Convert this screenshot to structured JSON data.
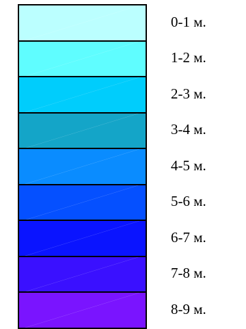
{
  "legend": {
    "items": [
      {
        "label": "0-1 м.",
        "color": "#bbffff"
      },
      {
        "label": "1-2 м.",
        "color": "#5ffdff"
      },
      {
        "label": "2-3 м.",
        "color": "#00cdfc"
      },
      {
        "label": "3-4 м.",
        "color": "#14a5c8"
      },
      {
        "label": "4-5 м.",
        "color": "#0a8cff"
      },
      {
        "label": "5-6 м.",
        "color": "#0550ff"
      },
      {
        "label": "6-7 м.",
        "color": "#0a14ff"
      },
      {
        "label": "7-8 м.",
        "color": "#3a10ff"
      },
      {
        "label": "8-9 м.",
        "color": "#7a14ff"
      }
    ]
  }
}
